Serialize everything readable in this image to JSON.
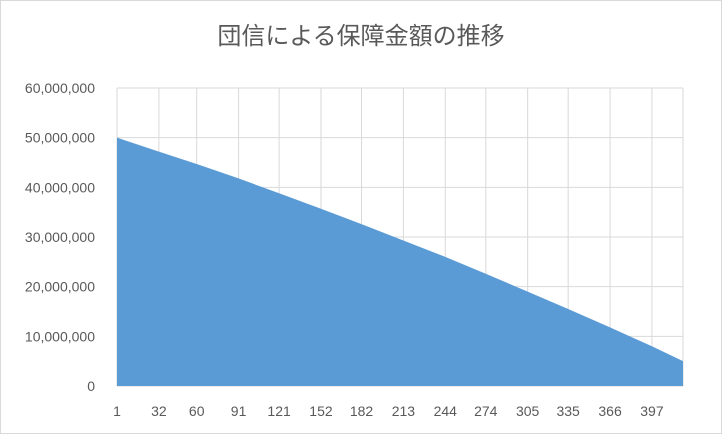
{
  "chart_data": {
    "type": "area",
    "title": "団信による保障金額の推移",
    "xlabel": "",
    "ylabel": "",
    "ylim": [
      0,
      60000000
    ],
    "y_ticks": [
      "0",
      "10,000,000",
      "20,000,000",
      "30,000,000",
      "40,000,000",
      "50,000,000",
      "60,000,000"
    ],
    "x_ticks": [
      "1",
      "32",
      "60",
      "91",
      "121",
      "152",
      "182",
      "213",
      "244",
      "274",
      "305",
      "335",
      "366",
      "397"
    ],
    "x_range": [
      1,
      420
    ],
    "grid": true,
    "legend": "none",
    "series": [
      {
        "color": "#5b9bd5",
        "x": [
          1,
          32,
          60,
          91,
          121,
          152,
          182,
          213,
          244,
          274,
          305,
          335,
          366,
          397,
          420
        ],
        "values": [
          50000000,
          47200000,
          44700000,
          41800000,
          38800000,
          35700000,
          32600000,
          29300000,
          26000000,
          22600000,
          19000000,
          15500000,
          11800000,
          8000000,
          5000000
        ]
      }
    ]
  }
}
